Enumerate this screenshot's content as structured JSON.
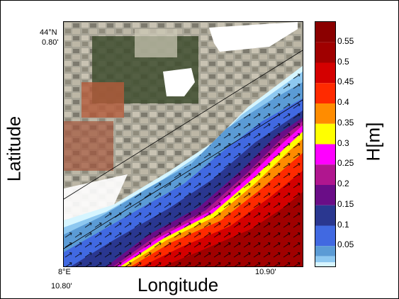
{
  "map": {
    "corner_top_lat": "44°N",
    "corner_top_min": "0.80'",
    "corner_bottom_lon": "8°E",
    "corner_bottom_min": "10.80'",
    "right_lon_min": "10.90'",
    "xlabel": "Longitude",
    "ylabel": "Latitude"
  },
  "colorbar": {
    "label": "H[m]",
    "ticks": [
      "0.55",
      "0.5",
      "0.45",
      "0.4",
      "0.35",
      "0.3",
      "0.25",
      "0.2",
      "0.15",
      "0.1",
      "0.05"
    ],
    "levels": [
      {
        "upper": 0.6,
        "color": "#8b0000"
      },
      {
        "upper": 0.55,
        "color": "#a00000"
      },
      {
        "upper": 0.5,
        "color": "#d40000"
      },
      {
        "upper": 0.45,
        "color": "#ff2a00"
      },
      {
        "upper": 0.4,
        "color": "#ff8c00"
      },
      {
        "upper": 0.35,
        "color": "#ffff00"
      },
      {
        "upper": 0.3,
        "color": "#ff00ff"
      },
      {
        "upper": 0.25,
        "color": "#b0168f"
      },
      {
        "upper": 0.2,
        "color": "#6a0d87"
      },
      {
        "upper": 0.15,
        "color": "#2a3790"
      },
      {
        "upper": 0.1,
        "color": "#4169e1"
      },
      {
        "upper": 0.05,
        "color": "#5b9bd5"
      },
      {
        "upper": 0.025,
        "color": "#8ec8f0"
      },
      {
        "upper": 0.01,
        "color": "#d6f5ff"
      },
      {
        "upper": 0.0,
        "color": "#ffffff"
      }
    ],
    "range": [
      0,
      0.6
    ]
  }
}
